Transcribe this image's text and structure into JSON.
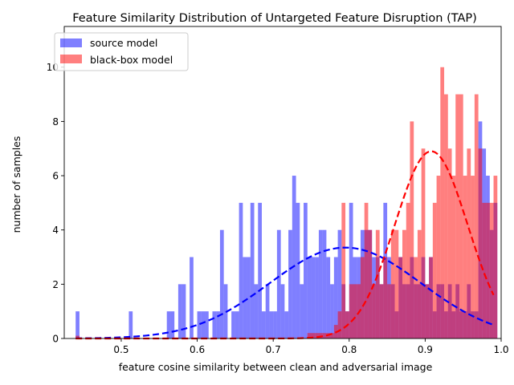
{
  "chart_data": {
    "type": "bar",
    "title": "Feature Similarity Distribution of Untargeted Feature Disruption (TAP)",
    "xlabel": "feature cosine similarity between clean and adversarial image",
    "ylabel": "number of samples",
    "xlim": [
      0.425,
      1.0
    ],
    "ylim": [
      0,
      11.5
    ],
    "xticks": [
      0.5,
      0.6,
      0.7,
      0.8,
      0.9,
      1.0
    ],
    "xtick_labels": [
      "0.5",
      "0.6",
      "0.7",
      "0.8",
      "0.9",
      "1.0"
    ],
    "yticks": [
      0,
      2,
      4,
      6,
      8,
      10
    ],
    "ytick_labels": [
      "0",
      "2",
      "4",
      "6",
      "8",
      "10"
    ],
    "bin_width": 0.005,
    "legend_position": "top-left",
    "series": [
      {
        "name": "source model",
        "color": "#0000ff",
        "bins": [
          [
            0.44,
            1
          ],
          [
            0.51,
            1
          ],
          [
            0.56,
            1
          ],
          [
            0.565,
            1
          ],
          [
            0.575,
            2
          ],
          [
            0.58,
            2
          ],
          [
            0.59,
            3
          ],
          [
            0.6,
            1
          ],
          [
            0.605,
            1
          ],
          [
            0.61,
            1
          ],
          [
            0.62,
            1
          ],
          [
            0.625,
            1
          ],
          [
            0.63,
            4
          ],
          [
            0.635,
            2
          ],
          [
            0.645,
            1
          ],
          [
            0.65,
            1
          ],
          [
            0.655,
            5
          ],
          [
            0.66,
            3
          ],
          [
            0.665,
            3
          ],
          [
            0.67,
            5
          ],
          [
            0.675,
            2
          ],
          [
            0.68,
            5
          ],
          [
            0.685,
            1
          ],
          [
            0.69,
            2
          ],
          [
            0.695,
            1
          ],
          [
            0.7,
            1
          ],
          [
            0.705,
            4
          ],
          [
            0.71,
            2
          ],
          [
            0.715,
            1
          ],
          [
            0.72,
            4
          ],
          [
            0.725,
            6
          ],
          [
            0.73,
            5
          ],
          [
            0.735,
            2
          ],
          [
            0.74,
            5
          ],
          [
            0.745,
            3
          ],
          [
            0.75,
            3
          ],
          [
            0.755,
            3
          ],
          [
            0.76,
            4
          ],
          [
            0.765,
            4
          ],
          [
            0.77,
            3
          ],
          [
            0.775,
            2
          ],
          [
            0.78,
            3
          ],
          [
            0.785,
            4
          ],
          [
            0.79,
            2
          ],
          [
            0.795,
            1
          ],
          [
            0.8,
            5
          ],
          [
            0.805,
            3
          ],
          [
            0.81,
            3
          ],
          [
            0.815,
            4
          ],
          [
            0.82,
            4
          ],
          [
            0.825,
            4
          ],
          [
            0.83,
            3
          ],
          [
            0.835,
            3
          ],
          [
            0.84,
            2
          ],
          [
            0.845,
            5
          ],
          [
            0.85,
            3
          ],
          [
            0.855,
            2
          ],
          [
            0.86,
            1
          ],
          [
            0.865,
            3
          ],
          [
            0.87,
            2
          ],
          [
            0.875,
            2
          ],
          [
            0.88,
            3
          ],
          [
            0.885,
            2
          ],
          [
            0.89,
            2
          ],
          [
            0.895,
            3
          ],
          [
            0.9,
            2
          ],
          [
            0.905,
            3
          ],
          [
            0.91,
            1
          ],
          [
            0.915,
            2
          ],
          [
            0.92,
            2
          ],
          [
            0.925,
            1
          ],
          [
            0.93,
            2
          ],
          [
            0.935,
            1
          ],
          [
            0.94,
            2
          ],
          [
            0.945,
            1
          ],
          [
            0.95,
            1
          ],
          [
            0.955,
            2
          ],
          [
            0.96,
            1
          ],
          [
            0.965,
            1
          ],
          [
            0.97,
            8
          ],
          [
            0.975,
            7
          ],
          [
            0.98,
            6
          ],
          [
            0.985,
            4
          ],
          [
            0.99,
            5
          ]
        ],
        "fit_curve": {
          "mu": 0.795,
          "sigma": 0.1,
          "peak": 3.35,
          "style": "dashed"
        }
      },
      {
        "name": "black-box model",
        "color": "#ff0000",
        "bins": [
          [
            0.44,
            0.1
          ],
          [
            0.745,
            0.2
          ],
          [
            0.75,
            0.2
          ],
          [
            0.755,
            0.2
          ],
          [
            0.76,
            0.2
          ],
          [
            0.765,
            0.2
          ],
          [
            0.77,
            0.2
          ],
          [
            0.775,
            0.2
          ],
          [
            0.78,
            0.5
          ],
          [
            0.785,
            1
          ],
          [
            0.79,
            5
          ],
          [
            0.795,
            1
          ],
          [
            0.8,
            2
          ],
          [
            0.805,
            2
          ],
          [
            0.81,
            2
          ],
          [
            0.815,
            3
          ],
          [
            0.82,
            5
          ],
          [
            0.825,
            4
          ],
          [
            0.83,
            2
          ],
          [
            0.835,
            4
          ],
          [
            0.84,
            2
          ],
          [
            0.845,
            3
          ],
          [
            0.85,
            2
          ],
          [
            0.855,
            4
          ],
          [
            0.86,
            4
          ],
          [
            0.865,
            3
          ],
          [
            0.87,
            4
          ],
          [
            0.875,
            5
          ],
          [
            0.88,
            8
          ],
          [
            0.885,
            3
          ],
          [
            0.89,
            4
          ],
          [
            0.895,
            7
          ],
          [
            0.9,
            2
          ],
          [
            0.905,
            3
          ],
          [
            0.91,
            5
          ],
          [
            0.915,
            6
          ],
          [
            0.92,
            10
          ],
          [
            0.925,
            9
          ],
          [
            0.93,
            7
          ],
          [
            0.935,
            6
          ],
          [
            0.94,
            9
          ],
          [
            0.945,
            9
          ],
          [
            0.95,
            6
          ],
          [
            0.955,
            7
          ],
          [
            0.96,
            6
          ],
          [
            0.965,
            9
          ],
          [
            0.97,
            7
          ],
          [
            0.975,
            5
          ],
          [
            0.98,
            5
          ],
          [
            0.985,
            5
          ],
          [
            0.99,
            6
          ]
        ],
        "fit_curve": {
          "mu": 0.908,
          "sigma": 0.048,
          "peak": 6.9,
          "style": "dashed"
        }
      }
    ]
  }
}
